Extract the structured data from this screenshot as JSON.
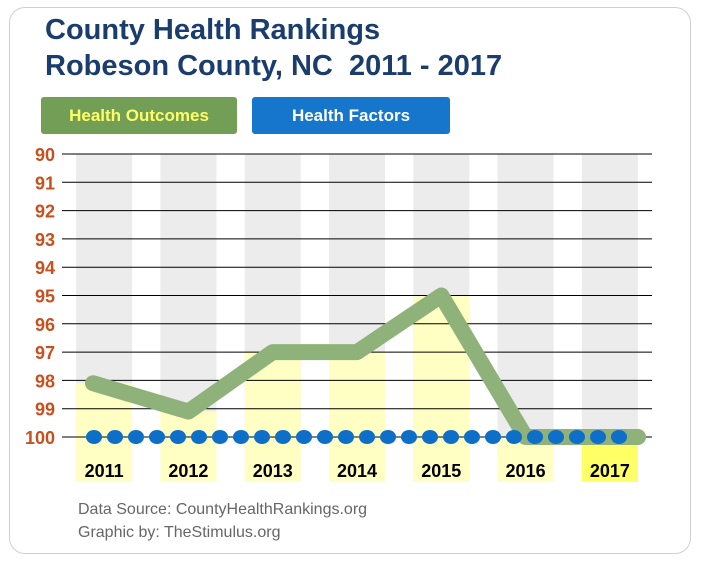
{
  "colors": {
    "title": "#1a3d6d",
    "outcomes": "#8fb27a",
    "outcomes_legend": "#739e56",
    "factors": "#0e6fc9",
    "factors_legend": "#1576cc",
    "tick_label": "#c8501e",
    "year_col_bg": "#ececec",
    "year_bar": "#ffffc4",
    "year_bar_highlight": "#ffff66"
  },
  "chart_data": {
    "type": "line",
    "title": "County Health Rankings",
    "subtitle": "Robeson County, NC  2011 - 2017",
    "categories": [
      "2011",
      "2012",
      "2013",
      "2014",
      "2015",
      "2016",
      "2017"
    ],
    "yticks": [
      "90",
      "91",
      "92",
      "93",
      "94",
      "95",
      "96",
      "97",
      "98",
      "99",
      "100"
    ],
    "ylim": [
      90,
      100
    ],
    "y_inverted": true,
    "grid": true,
    "legend_position": "top-left",
    "series": [
      {
        "name": "Health Outcomes",
        "values": [
          98.1,
          99.1,
          97.0,
          97.0,
          95.0,
          100,
          100
        ]
      },
      {
        "name": "Health Factors",
        "values": [
          100,
          100,
          100,
          100,
          100,
          100,
          100
        ]
      }
    ],
    "highlight_category": "2017"
  },
  "source": {
    "line1": "Data Source: CountyHealthRankings.org",
    "line2": "Graphic by: TheStimulus.org"
  }
}
